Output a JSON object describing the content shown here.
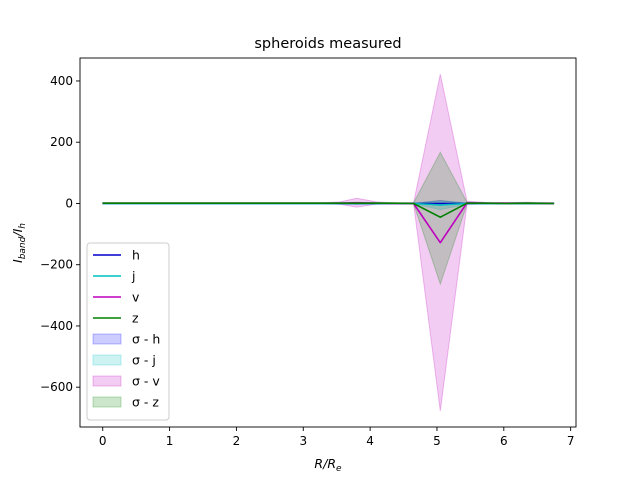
{
  "chart_data": {
    "type": "line",
    "title": "spheroids measured",
    "xlabel": "R/R_e",
    "ylabel": "I_band/I_h",
    "xlim": [
      -0.34,
      7.08
    ],
    "ylim": [
      -730,
      475
    ],
    "xticks": [
      0,
      1,
      2,
      3,
      4,
      5,
      6,
      7
    ],
    "yticks": [
      -600,
      -400,
      -200,
      0,
      200,
      400
    ],
    "grid": false,
    "legend_position": "lower-left",
    "x": [
      0,
      0.3,
      0.6,
      0.9,
      1.2,
      1.5,
      1.8,
      2.1,
      2.4,
      2.7,
      3.0,
      3.3,
      3.55,
      3.8,
      4.1,
      4.35,
      4.65,
      5.05,
      5.45,
      5.75,
      6.05,
      6.35,
      6.75
    ],
    "series": [
      {
        "name": "h",
        "color": "#0000cc",
        "values": [
          0,
          0,
          0,
          0,
          0,
          0,
          0,
          0,
          0,
          0,
          0,
          0,
          0,
          0,
          0,
          0,
          0,
          0,
          0,
          0,
          0,
          0,
          0
        ],
        "band_lower": [
          0,
          0,
          0,
          0,
          0,
          0,
          0,
          0,
          0,
          0,
          0,
          0,
          0,
          0,
          0,
          0,
          0,
          -6,
          0,
          0,
          0,
          0,
          0
        ],
        "band_upper": [
          0,
          0,
          0,
          0,
          0,
          0,
          0,
          0,
          0,
          0,
          0,
          0,
          0,
          0,
          0,
          0,
          0,
          10,
          0,
          0,
          0,
          0,
          0
        ]
      },
      {
        "name": "j",
        "color": "#00bfbf",
        "values": [
          0,
          0,
          0,
          0,
          0,
          0,
          0,
          0,
          0,
          0,
          0,
          0,
          0,
          0,
          0,
          0,
          0,
          -5,
          0,
          0,
          0,
          0,
          0
        ],
        "band_lower": [
          -1,
          -1,
          -1,
          -1,
          -1,
          -1,
          -1,
          -1,
          -1,
          -1,
          -1,
          -1,
          -2,
          -3,
          -2,
          -1,
          -1,
          -20,
          -2,
          -1,
          -1,
          -1,
          -1
        ],
        "band_upper": [
          1,
          1,
          1,
          1,
          1,
          1,
          1,
          1,
          1,
          1,
          1,
          1,
          2,
          3,
          2,
          1,
          1,
          8,
          2,
          1,
          1,
          1,
          1
        ]
      },
      {
        "name": "v",
        "color": "#bf00bf",
        "values": [
          1,
          1,
          1,
          1,
          1,
          1,
          1,
          1,
          1,
          1,
          1,
          1,
          1,
          2,
          1,
          0,
          0,
          -128,
          2,
          1,
          1,
          1,
          0
        ],
        "band_lower": [
          0,
          0,
          0,
          0,
          0,
          0,
          0,
          0,
          0,
          0,
          0,
          0,
          -3,
          -12,
          -2,
          -1,
          -1,
          -678,
          -3,
          -1,
          -1,
          -1,
          -1
        ],
        "band_upper": [
          2,
          2,
          2,
          2,
          2,
          2,
          2,
          2,
          2,
          2,
          2,
          2,
          5,
          17,
          5,
          2,
          2,
          422,
          7,
          3,
          3,
          4,
          2
        ]
      },
      {
        "name": "z",
        "color": "#008000",
        "values": [
          1,
          1,
          1,
          1,
          1,
          1,
          1,
          1,
          1,
          1,
          1,
          1,
          1,
          1,
          1,
          1,
          0,
          -45,
          1,
          1,
          0,
          1,
          0
        ],
        "band_lower": [
          0,
          0,
          0,
          0,
          0,
          0,
          0,
          0,
          0,
          0,
          0,
          0,
          0,
          -2,
          0,
          0,
          -1,
          -263,
          -2,
          -1,
          -1,
          -1,
          -1
        ],
        "band_upper": [
          2,
          2,
          2,
          2,
          2,
          2,
          2,
          2,
          2,
          2,
          2,
          2,
          2,
          4,
          2,
          2,
          2,
          167,
          4,
          2,
          2,
          3,
          2
        ]
      }
    ],
    "legend": [
      {
        "label": "h",
        "kind": "line",
        "color": "#0000cc"
      },
      {
        "label": "j",
        "kind": "line",
        "color": "#00bfbf"
      },
      {
        "label": "v",
        "kind": "line",
        "color": "#bf00bf"
      },
      {
        "label": "z",
        "kind": "line",
        "color": "#008000"
      },
      {
        "label": "σ - h",
        "kind": "band",
        "color": "#0000ff"
      },
      {
        "label": "σ - j",
        "kind": "band",
        "color": "#00bfbf"
      },
      {
        "label": "σ - v",
        "kind": "band",
        "color": "#bf00bf"
      },
      {
        "label": "σ - z",
        "kind": "band",
        "color": "#008000"
      }
    ]
  }
}
